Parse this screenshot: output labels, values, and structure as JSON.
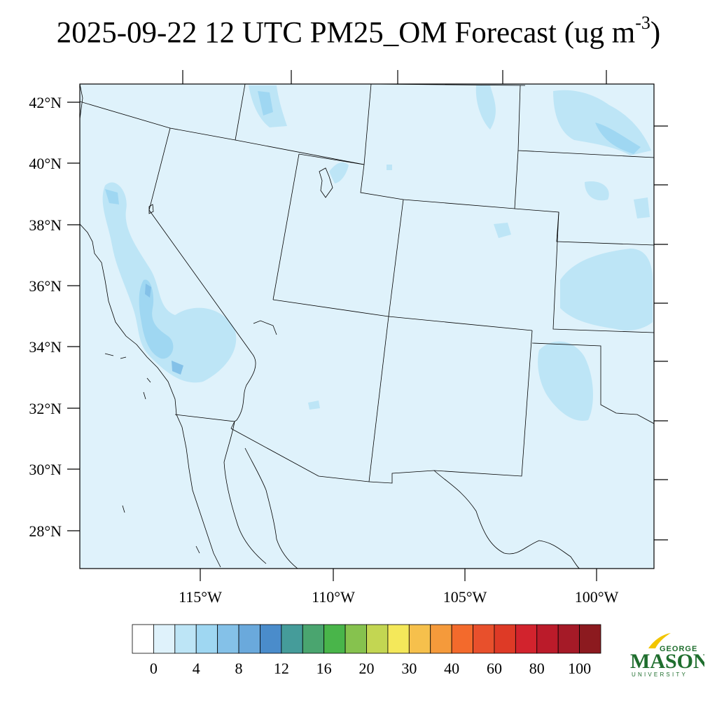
{
  "title": {
    "main": "2025-09-22 12 UTC PM25_OM Forecast (ug m",
    "superscript": "-3",
    "close": ")"
  },
  "map": {
    "background_color": "#dff2fb",
    "latitude_labels": [
      "42°N",
      "40°N",
      "38°N",
      "36°N",
      "34°N",
      "32°N",
      "30°N",
      "28°N"
    ],
    "longitude_labels": [
      "115°W",
      "110°W",
      "105°W",
      "100°W"
    ]
  },
  "colorbar": {
    "colors": [
      "#ffffff",
      "#dff2fb",
      "#bde5f6",
      "#9fd7f2",
      "#84c1e8",
      "#6aa9dc",
      "#4a8ccb",
      "#459c9a",
      "#4aa56f",
      "#49b54a",
      "#86c24e",
      "#c3d652",
      "#f4e85a",
      "#f6c04c",
      "#f59a3b",
      "#f36a2c",
      "#e8502c",
      "#de3a26",
      "#d2232d",
      "#bb1b2a",
      "#a51a27",
      "#8c1a1f"
    ],
    "labels": [
      "0",
      "4",
      "8",
      "12",
      "16",
      "20",
      "30",
      "40",
      "60",
      "80",
      "100"
    ]
  },
  "logo": {
    "top": "GEORGE",
    "main": "MASON",
    "bottom": "UNIVERSITY",
    "color": "#1f6e2e",
    "accent_color": "#f2c500"
  }
}
